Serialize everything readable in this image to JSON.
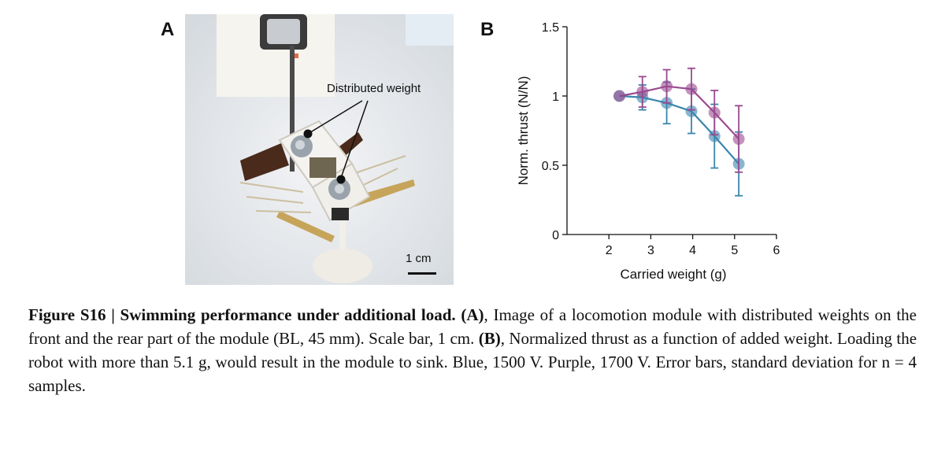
{
  "panel_a": {
    "letter": "A",
    "label": "Distributed weight",
    "scale_bar": "1 cm"
  },
  "panel_b": {
    "letter": "B"
  },
  "chart_data": {
    "type": "line",
    "xlabel": "Carried weight (g)",
    "ylabel": "Norm. thrust (N/N)",
    "xlim": [
      1,
      6
    ],
    "ylim": [
      0,
      1.5
    ],
    "xticks": [
      2,
      3,
      4,
      5,
      6
    ],
    "yticks": [
      0,
      0.5,
      1,
      1.5
    ],
    "ytick_labels": [
      "0",
      "0.5",
      "1",
      "1.5"
    ],
    "grid": false,
    "legend": "none",
    "series": [
      {
        "color": "#3a86ad",
        "x": [
          2.25,
          2.8,
          3.38,
          3.97,
          4.52,
          5.1
        ],
        "y": [
          1.0,
          0.99,
          0.95,
          0.89,
          0.71,
          0.51
        ],
        "err": [
          0,
          0.09,
          0.15,
          0.16,
          0.23,
          0.23
        ]
      },
      {
        "color": "#9a4a8f",
        "x": [
          2.25,
          2.8,
          3.38,
          3.97,
          4.52,
          5.1
        ],
        "y": [
          1.0,
          1.03,
          1.07,
          1.05,
          0.88,
          0.69
        ],
        "err": [
          0,
          0.11,
          0.12,
          0.15,
          0.16,
          0.24
        ]
      }
    ]
  },
  "caption": {
    "heading": "Figure S16 | Swimming performance under additional load.",
    "a_tag": "(A)",
    "a_text": ", Image of a locomotion module with distributed weights on the front and the rear part of the module (BL, 45 mm). Scale bar, 1 cm.",
    "b_tag": "(B)",
    "b_text": ", Normalized thrust as a function of added weight. Loading the robot with more than 5.1 g, would result in the module to sink. Blue, 1500 V. Purple, 1700 V. Error bars, standard deviation for n = 4 samples."
  }
}
